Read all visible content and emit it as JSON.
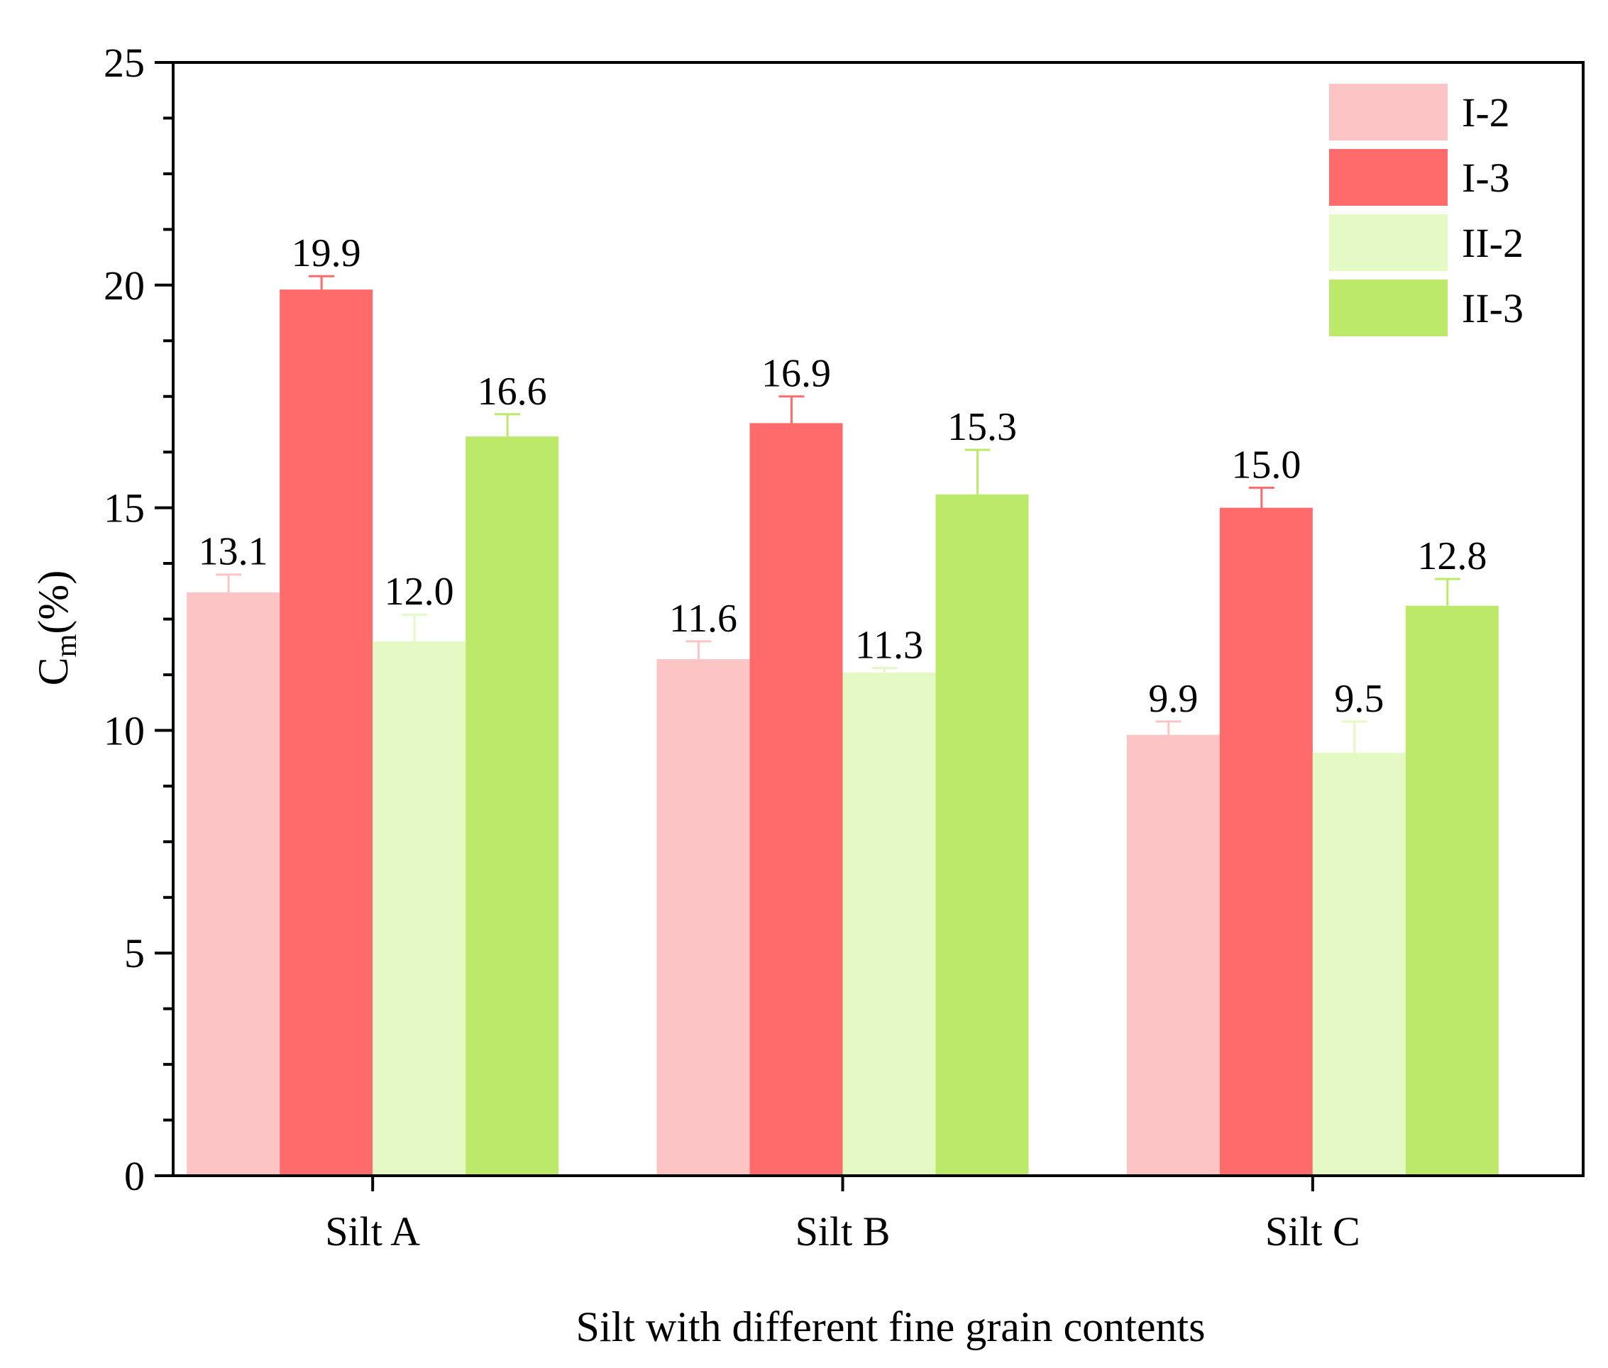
{
  "chart_data": {
    "type": "bar",
    "title": "",
    "xlabel": "Silt  with different fine grain contents",
    "ylabel_main": "C",
    "ylabel_sub": "m",
    "ylabel_unit": "(%)",
    "ylim": [
      0,
      25
    ],
    "yticks": [
      "0",
      "5",
      "10",
      "15",
      "20",
      "25"
    ],
    "categories": [
      "Silt A",
      "Silt B",
      "Silt C"
    ],
    "series": [
      {
        "name": "I-2",
        "color": "#fcc4c4",
        "values": [
          13.1,
          11.6,
          9.9
        ],
        "labels": [
          "13.1",
          "11.6",
          "9.9"
        ],
        "errors": [
          0.4,
          0.4,
          0.3
        ]
      },
      {
        "name": "I-3",
        "color": "#ff6b6b",
        "values": [
          19.9,
          16.9,
          15.0
        ],
        "labels": [
          "19.9",
          "16.9",
          "15.0"
        ],
        "errors": [
          0.3,
          0.6,
          0.45
        ]
      },
      {
        "name": "II-2",
        "color": "#e4f9c4",
        "values": [
          12.0,
          11.3,
          9.5
        ],
        "labels": [
          "12.0",
          "11.3",
          "9.5"
        ],
        "errors": [
          0.6,
          0.1,
          0.7
        ]
      },
      {
        "name": "II-3",
        "color": "#bde96b",
        "values": [
          16.6,
          15.3,
          12.8
        ],
        "labels": [
          "16.6",
          "15.3",
          "12.8"
        ],
        "errors": [
          0.5,
          1.0,
          0.6
        ]
      }
    ],
    "legend_position": "top-right",
    "grid": false
  }
}
